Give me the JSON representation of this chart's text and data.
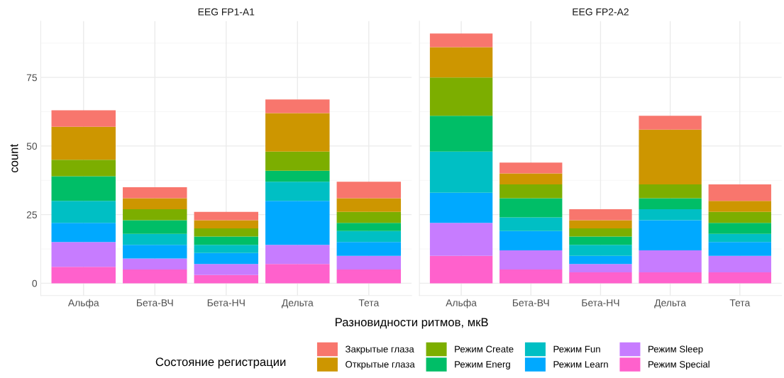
{
  "chart_data": [
    {
      "type": "bar",
      "title": "EEG FP1-A1",
      "xlabel": "Разновидности ритмов, мкВ",
      "ylabel": "count",
      "legend_title": "Состояние регистрации",
      "legend": "bottom",
      "stacked": true,
      "grid": true,
      "categories": [
        "Альфа",
        "Бета-ВЧ",
        "Бета-НЧ",
        "Дельта",
        "Тета"
      ],
      "ylim": [
        -4.5,
        95.5
      ],
      "yticks": [
        0,
        25,
        50,
        75
      ],
      "series": [
        {
          "name": "Режим Special",
          "color": "#ff61cc",
          "values": [
            6,
            5,
            3,
            7,
            5
          ]
        },
        {
          "name": "Режим Sleep",
          "color": "#c77cff",
          "values": [
            9,
            4,
            4,
            7,
            5
          ]
        },
        {
          "name": "Режим Learn",
          "color": "#00a9ff",
          "values": [
            7,
            5,
            4,
            16,
            5
          ]
        },
        {
          "name": "Режим Fun",
          "color": "#00bfc4",
          "values": [
            8,
            4,
            3,
            7,
            4
          ]
        },
        {
          "name": "Режим Energ",
          "color": "#00be67",
          "values": [
            9,
            5,
            3,
            4,
            3
          ]
        },
        {
          "name": "Режим Create",
          "color": "#7cae00",
          "values": [
            6,
            4,
            3,
            7,
            4
          ]
        },
        {
          "name": "Открытые глаза",
          "color": "#cd9600",
          "values": [
            12,
            4,
            3,
            14,
            5
          ]
        },
        {
          "name": "Закрытые глаза",
          "color": "#f8766d",
          "values": [
            6,
            4,
            3,
            5,
            6
          ]
        }
      ]
    },
    {
      "type": "bar",
      "title": "EEG FP2-A2",
      "stacked": true,
      "grid": true,
      "tick_labels": "x",
      "categories": [
        "Альфа",
        "Бета-ВЧ",
        "Бета-НЧ",
        "Дельта",
        "Тета"
      ],
      "ylim": [
        -4.5,
        95.5
      ],
      "yticks": [
        0,
        25,
        50,
        75
      ],
      "series": [
        {
          "color": "#ff61cc",
          "values": [
            10,
            5,
            4,
            4,
            4
          ]
        },
        {
          "color": "#c77cff",
          "values": [
            12,
            7,
            3,
            8,
            6
          ]
        },
        {
          "color": "#00a9ff",
          "values": [
            11,
            7,
            3,
            11,
            5
          ]
        },
        {
          "color": "#00bfc4",
          "values": [
            15,
            5,
            4,
            4,
            3
          ]
        },
        {
          "color": "#00be67",
          "values": [
            13,
            7,
            3,
            4,
            4
          ]
        },
        {
          "color": "#7cae00",
          "values": [
            14,
            5,
            3,
            5,
            4
          ]
        },
        {
          "color": "#cd9600",
          "values": [
            11,
            4,
            3,
            20,
            4
          ]
        },
        {
          "color": "#f8766d",
          "values": [
            5,
            4,
            4,
            5,
            6
          ]
        }
      ]
    }
  ]
}
